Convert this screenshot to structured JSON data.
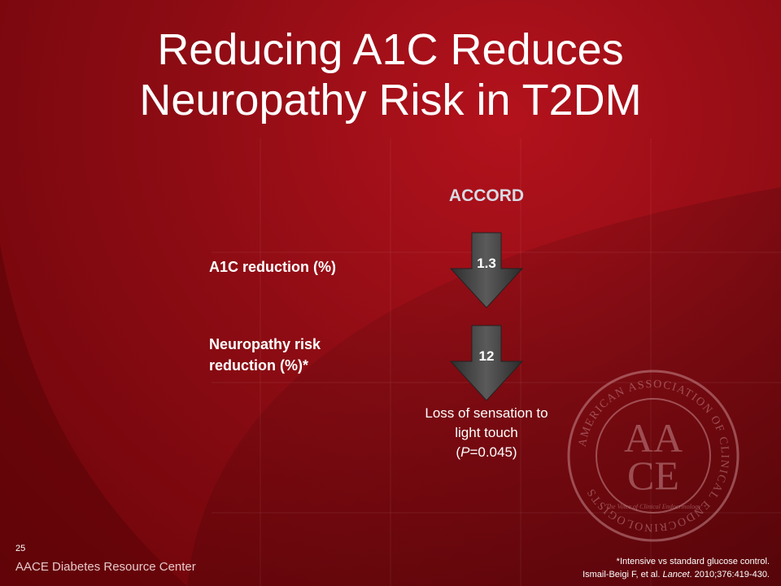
{
  "slide": {
    "title_lines": [
      "Reducing A1C Reduces",
      "Neuropathy Risk in T2DM"
    ],
    "study_name": "ACCORD",
    "rows": [
      {
        "label": "A1C reduction (%)",
        "value": "1.3"
      },
      {
        "label_lines": [
          "Neuropathy risk",
          "reduction (%)*"
        ],
        "value": "12"
      }
    ],
    "outcome": {
      "line1": "Loss of sensation to",
      "line2": "light touch",
      "p_prefix": "(",
      "p_italic": "P",
      "p_suffix": "=0.045)"
    },
    "slide_number": "25",
    "brand": "AACE Diabetes Resource Center",
    "footnote": {
      "line1": "*Intensive vs standard glucose control.",
      "citation_prefix": "Ismail-Beigi F, et al. ",
      "journal": "Lancet",
      "citation_suffix": ". 2010;376:419-430."
    },
    "seal": {
      "ring_text": "AMERICAN ASSOCIATION OF CLINICAL ENDOCRINOLOGISTS",
      "monogram_top": "AA",
      "monogram_bottom": "CE",
      "motto": "The Voice of Clinical Endocrinology"
    },
    "colors": {
      "background": "#8e0c14",
      "arrow": "#4a4a4a",
      "study_label": "#d6dbe4"
    }
  }
}
